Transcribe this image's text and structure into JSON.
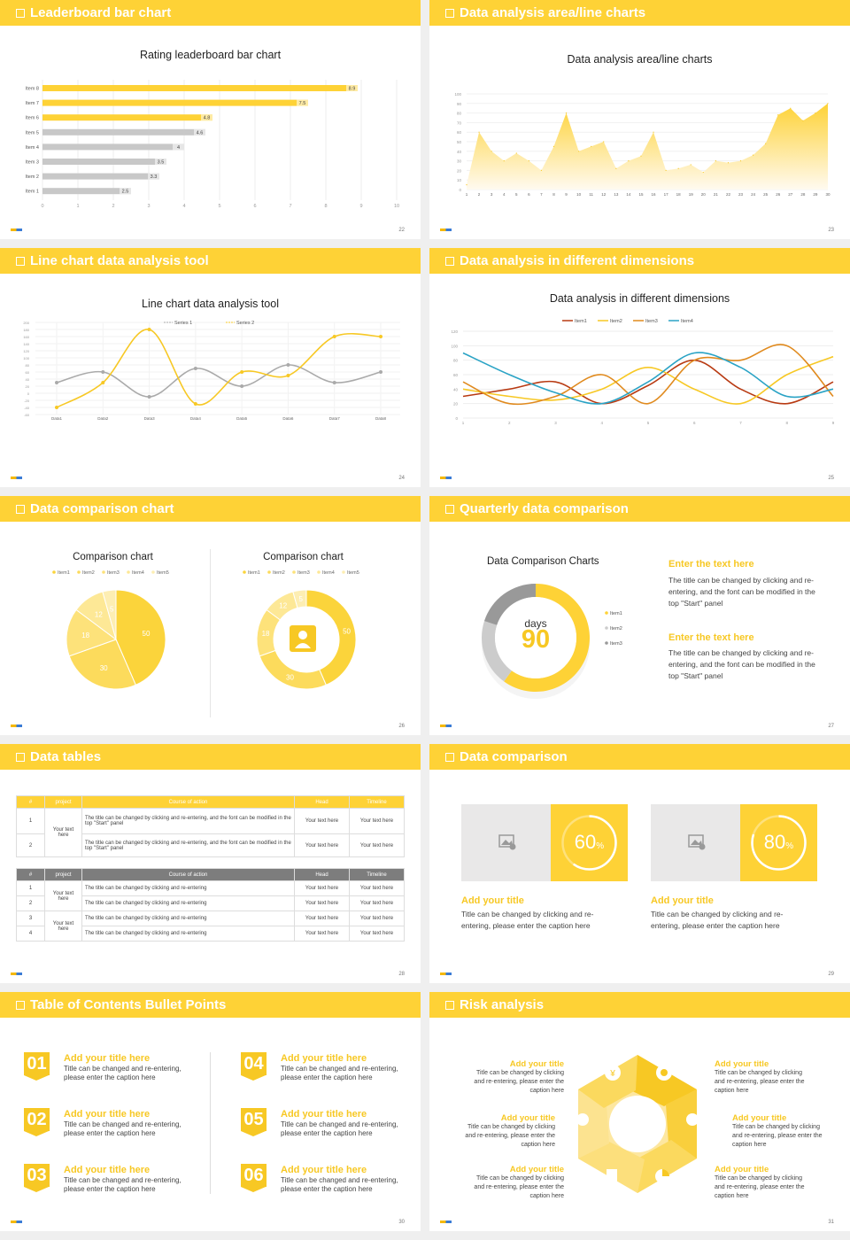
{
  "slides": [
    {
      "title": "Leaderboard bar chart",
      "page": "22"
    },
    {
      "title": "Data analysis area/line charts",
      "page": "23"
    },
    {
      "title": "Line chart data analysis tool",
      "page": "24"
    },
    {
      "title": "Data analysis in different dimensions",
      "page": "25"
    },
    {
      "title": "Data comparison chart",
      "page": "26"
    },
    {
      "title": "Quarterly data comparison",
      "page": "27"
    },
    {
      "title": "Data tables",
      "page": "28"
    },
    {
      "title": "Data comparison",
      "page": "29"
    },
    {
      "title": "Table of Contents Bullet Points",
      "page": "30"
    },
    {
      "title": "Risk analysis",
      "page": "31"
    }
  ],
  "chart_data": [
    {
      "type": "bar",
      "title": "Rating leaderboard bar chart",
      "categories": [
        "Item 8",
        "Item 7",
        "Item 6",
        "Item 5",
        "Item 4",
        "Item 3",
        "Item 2",
        "Item 1"
      ],
      "values": [
        8.9,
        7.5,
        4.8,
        4.6,
        4,
        3.5,
        3.3,
        2.5
      ],
      "xlim": [
        0,
        10
      ],
      "xticks": [
        "0",
        "1",
        "2",
        "3",
        "4",
        "5",
        "6",
        "7",
        "8",
        "9",
        "10"
      ],
      "highlight_colors": [
        "#fed236",
        "#fed236",
        "#fed236",
        "#c8c8c8",
        "#c8c8c8",
        "#c8c8c8",
        "#c8c8c8",
        "#c8c8c8"
      ]
    },
    {
      "type": "area",
      "title": "Data analysis area/line charts",
      "x": [
        "1",
        "2",
        "3",
        "4",
        "5",
        "6",
        "7",
        "8",
        "9",
        "10",
        "11",
        "12",
        "13",
        "14",
        "15",
        "16",
        "17",
        "18",
        "19",
        "20",
        "21",
        "22",
        "23",
        "24",
        "25",
        "26",
        "27",
        "28",
        "29",
        "30"
      ],
      "values": [
        5,
        60,
        40,
        30,
        38,
        30,
        20,
        45,
        80,
        40,
        45,
        50,
        22,
        30,
        35,
        60,
        20,
        22,
        26,
        18,
        30,
        28,
        30,
        36,
        48,
        78,
        85,
        72,
        80,
        90
      ],
      "ylim": [
        0,
        100
      ],
      "yticks": [
        "0",
        "10",
        "20",
        "30",
        "40",
        "50",
        "60",
        "70",
        "80",
        "90",
        "100"
      ]
    },
    {
      "type": "line",
      "title": "Line chart data analysis tool",
      "categories": [
        "Data1",
        "Data2",
        "Data3",
        "Data4",
        "Data5",
        "Data6",
        "Data7",
        "Data8"
      ],
      "series": [
        {
          "name": "Series 1",
          "values": [
            30,
            60,
            -10,
            70,
            20,
            80,
            30,
            60
          ]
        },
        {
          "name": "Series 2",
          "values": [
            -40,
            30,
            180,
            -30,
            60,
            50,
            160,
            160
          ]
        }
      ],
      "ylim": [
        -60,
        200
      ],
      "yticks": [
        "-60",
        "-40",
        "-20",
        "0",
        "20",
        "40",
        "60",
        "80",
        "100",
        "120",
        "140",
        "160",
        "180",
        "200"
      ]
    },
    {
      "type": "line",
      "title": "Data analysis in different dimensions",
      "categories": [
        "1",
        "2",
        "3",
        "4",
        "5",
        "6",
        "7",
        "8",
        "9"
      ],
      "series": [
        {
          "name": "Item1",
          "values": [
            30,
            40,
            50,
            20,
            45,
            80,
            40,
            20,
            50
          ]
        },
        {
          "name": "Item2",
          "values": [
            40,
            30,
            25,
            40,
            70,
            40,
            20,
            60,
            85
          ]
        },
        {
          "name": "Item3",
          "values": [
            50,
            20,
            30,
            60,
            20,
            80,
            80,
            100,
            30
          ]
        },
        {
          "name": "Item4",
          "values": [
            90,
            60,
            35,
            20,
            50,
            90,
            70,
            30,
            40
          ]
        }
      ],
      "ylim": [
        0,
        120
      ],
      "yticks": [
        "0",
        "20",
        "40",
        "60",
        "80",
        "100",
        "120"
      ]
    },
    {
      "type": "pie",
      "title": "Comparison chart",
      "labels": [
        "Item1",
        "Item2",
        "Item3",
        "Item4",
        "Item5"
      ],
      "values": [
        50,
        30,
        18,
        12,
        5
      ]
    },
    {
      "type": "pie",
      "title": "Comparison chart",
      "labels": [
        "Item1",
        "Item2",
        "Item3",
        "Item4",
        "Item5"
      ],
      "values": [
        50,
        30,
        18,
        12,
        5
      ],
      "donut": true
    },
    {
      "type": "pie",
      "title": "Data Comparison Charts",
      "labels": [
        "Item1",
        "Item2",
        "Item3"
      ],
      "values": [
        60,
        20,
        20
      ],
      "donut": true
    }
  ],
  "s6": {
    "days_label": "days",
    "days_value": "90",
    "text1_title": "Enter the text here",
    "text1": "The title can be changed by clicking and re-entering, and the font can be modified in the top \"Start\" panel",
    "text2_title": "Enter the text here",
    "text2": "The title can be changed by clicking and re-entering, and the font can be modified in the top \"Start\" panel"
  },
  "table1": {
    "headers": [
      "#",
      "project",
      "Course of action",
      "Head",
      "Timeline"
    ],
    "rows": [
      {
        "n": "1",
        "action": "The title can be changed by clicking and re-entering, and the font can be modified in the top \"Start\" panel",
        "head": "Your text here",
        "time": "Your text here"
      },
      {
        "n": "2",
        "action": "The title can be changed by clicking and re-entering, and the font can be modified in the top \"Start\" panel",
        "head": "Your text here",
        "time": "Your text here"
      }
    ],
    "project": "Your text here"
  },
  "table2": {
    "headers": [
      "#",
      "project",
      "Course of action",
      "Head",
      "Timeline"
    ],
    "rows": [
      {
        "n": "1",
        "action": "The title can be changed by clicking and re-entering",
        "head": "Your text here",
        "time": "Your text here"
      },
      {
        "n": "2",
        "action": "The title can be changed by clicking and re-entering",
        "head": "Your text here",
        "time": "Your text here"
      },
      {
        "n": "3",
        "action": "The title can be changed by clicking and re-entering",
        "head": "Your text here",
        "time": "Your text here"
      },
      {
        "n": "4",
        "action": "The title can be changed by clicking and re-entering",
        "head": "Your text here",
        "time": "Your text here"
      }
    ],
    "project1": "Your text here",
    "project2": "Your text here"
  },
  "s8": [
    {
      "pct": "60",
      "sym": "%",
      "progress": 0.6,
      "title": "Add your title",
      "text": "Title can be changed by clicking and re-entering, please enter the caption here"
    },
    {
      "pct": "80",
      "sym": "%",
      "progress": 0.8,
      "title": "Add your title",
      "text": "Title can be changed by clicking and re-entering, please enter the caption here"
    }
  ],
  "s9": [
    {
      "n": "01",
      "title": "Add your title here",
      "text": "Title can be changed and re-entering, please enter the caption here"
    },
    {
      "n": "02",
      "title": "Add your title here",
      "text": "Title can be changed and re-entering, please enter the caption here"
    },
    {
      "n": "03",
      "title": "Add your title here",
      "text": "Title can be changed and re-entering, please enter the caption here"
    },
    {
      "n": "04",
      "title": "Add your title here",
      "text": "Title can be changed and re-entering, please enter the caption here"
    },
    {
      "n": "05",
      "title": "Add your title here",
      "text": "Title can be changed and re-entering, please enter the caption here"
    },
    {
      "n": "06",
      "title": "Add your title here",
      "text": "Title can be changed and re-entering, please enter the caption here"
    }
  ],
  "s10": [
    {
      "title": "Add your title",
      "text": "Title can be changed by clicking and re-entering, please enter the caption here"
    },
    {
      "title": "Add your title",
      "text": "Title can be changed by clicking and re-entering, please enter the caption here"
    },
    {
      "title": "Add your title",
      "text": "Title can be changed by clicking and re-entering, please enter the caption here"
    },
    {
      "title": "Add your title",
      "text": "Title can be changed by clicking and re-entering, please enter the caption here"
    },
    {
      "title": "Add your title",
      "text": "Title can be changed by clicking and re-entering, please enter the caption here"
    },
    {
      "title": "Add your title",
      "text": "Title can be changed by clicking and re-entering, please enter the caption here"
    }
  ],
  "colors": {
    "accent": "#fed236",
    "gray": "#c8c8c8",
    "item1": "#b83a12",
    "item2": "#f7c824",
    "item3": "#e08a1e",
    "item4": "#2aa3c5"
  },
  "icons": [
    "image-placeholder-icon",
    "person-icon",
    "money-bag-icon",
    "coins-icon",
    "people-icon",
    "building-icon",
    "pie-icon",
    "handshake-icon"
  ]
}
